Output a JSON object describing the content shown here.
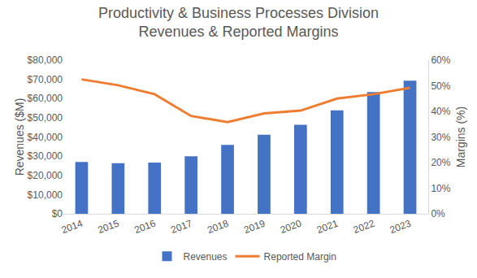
{
  "chart_data": {
    "type": "bar",
    "title": "Productivity & Business Processes Division\nRevenues & Reported Margins",
    "ylabel": "Revenues ($M)",
    "y2label": "Margins (%)",
    "categories": [
      "2014",
      "2015",
      "2016",
      "2017",
      "2018",
      "2019",
      "2020",
      "2021",
      "2022",
      "2023"
    ],
    "series": [
      {
        "name": "Revenues",
        "type": "bar",
        "color": "#4472c4",
        "values": [
          27000,
          26400,
          26700,
          29900,
          35900,
          41200,
          46400,
          53900,
          63400,
          69300
        ]
      },
      {
        "name": "Reported Margin",
        "type": "line",
        "color": "#ed7d31",
        "axis": "y2",
        "values": [
          52.5,
          50.2,
          46.7,
          38.2,
          35.8,
          39.2,
          40.3,
          45.0,
          46.7,
          49.2
        ]
      }
    ],
    "ylim": [
      0,
      80000
    ],
    "yticks": [
      {
        "value": 0,
        "label": "$0"
      },
      {
        "value": 10000,
        "label": "$10,000"
      },
      {
        "value": 20000,
        "label": "$20,000"
      },
      {
        "value": 30000,
        "label": "$30,000"
      },
      {
        "value": 40000,
        "label": "$40,000"
      },
      {
        "value": 50000,
        "label": "$50,000"
      },
      {
        "value": 60000,
        "label": "$60,000"
      },
      {
        "value": 70000,
        "label": "$70,000"
      },
      {
        "value": 80000,
        "label": "$80,000"
      }
    ],
    "y2lim": [
      0,
      60
    ],
    "y2ticks": [
      {
        "value": 0,
        "label": "0%"
      },
      {
        "value": 10,
        "label": "10%"
      },
      {
        "value": 20,
        "label": "20%"
      },
      {
        "value": 30,
        "label": "30%"
      },
      {
        "value": 40,
        "label": "40%"
      },
      {
        "value": 50,
        "label": "50%"
      },
      {
        "value": 60,
        "label": "60%"
      }
    ],
    "grid": false,
    "legend": "bottom"
  }
}
